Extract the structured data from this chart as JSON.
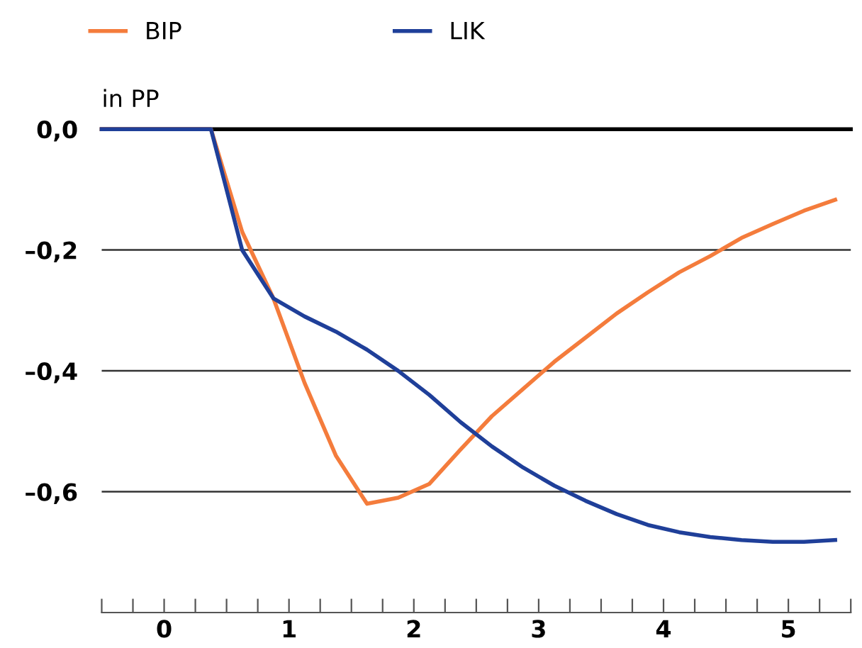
{
  "chart_data": {
    "type": "line",
    "ylabel": "in PP",
    "series": [
      {
        "name": "BIP",
        "color": "#f47c3c",
        "x": [
          -0.5,
          0.375,
          0.625,
          0.875,
          1.125,
          1.375,
          1.625,
          1.875,
          2.125,
          2.375,
          2.625,
          2.875,
          3.125,
          3.375,
          3.625,
          3.875,
          4.125,
          4.375,
          4.625,
          4.875,
          5.125,
          5.375
        ],
        "values": [
          0,
          0,
          -0.17,
          -0.28,
          -0.42,
          -0.54,
          -0.62,
          -0.61,
          -0.587,
          -0.53,
          -0.475,
          -0.43,
          -0.385,
          -0.345,
          -0.305,
          -0.27,
          -0.237,
          -0.21,
          -0.18,
          -0.157,
          -0.135,
          -0.117
        ]
      },
      {
        "name": "LIK",
        "color": "#1f3f99",
        "x": [
          -0.5,
          0.375,
          0.625,
          0.875,
          1.125,
          1.375,
          1.625,
          1.875,
          2.125,
          2.375,
          2.625,
          2.875,
          3.125,
          3.375,
          3.625,
          3.875,
          4.125,
          4.375,
          4.625,
          4.875,
          5.125,
          5.375
        ],
        "values": [
          0,
          0,
          -0.2,
          -0.28,
          -0.31,
          -0.335,
          -0.365,
          -0.4,
          -0.44,
          -0.485,
          -0.525,
          -0.56,
          -0.59,
          -0.615,
          -0.637,
          -0.655,
          -0.667,
          -0.675,
          -0.68,
          -0.683,
          -0.683,
          -0.68
        ]
      }
    ],
    "xlim": [
      -0.5,
      5.5
    ],
    "xticks": [
      {
        "value": -0.5,
        "label": null
      },
      {
        "value": -0.25,
        "label": null
      },
      0,
      {
        "value": 0.25,
        "label": null
      },
      {
        "value": 0.5,
        "label": null
      },
      {
        "value": 0.75,
        "label": null
      },
      1,
      {
        "value": 1.25,
        "label": null
      },
      {
        "value": 1.5,
        "label": null
      },
      {
        "value": 1.75,
        "label": null
      },
      2,
      {
        "value": 2.25,
        "label": null
      },
      {
        "value": 2.5,
        "label": null
      },
      {
        "value": 2.75,
        "label": null
      },
      3,
      {
        "value": 3.25,
        "label": null
      },
      {
        "value": 3.5,
        "label": null
      },
      {
        "value": 3.75,
        "label": null
      },
      4,
      {
        "value": 4.25,
        "label": null
      },
      {
        "value": 4.5,
        "label": null
      },
      {
        "value": 4.75,
        "label": null
      },
      5,
      {
        "value": 5.25,
        "label": null
      },
      {
        "value": 5.5,
        "label": null
      }
    ],
    "ylim": [
      -0.8,
      0
    ],
    "yticks": [
      {
        "value": 0,
        "label": "0,0"
      },
      {
        "value": -0.2,
        "label": "–0,2"
      },
      {
        "value": -0.4,
        "label": "–0,4"
      },
      {
        "value": -0.6,
        "label": "–0,6"
      }
    ],
    "ref_lines": [
      {
        "axis": "y",
        "value": 0,
        "color": "#000000"
      }
    ],
    "grid": "y",
    "legend": "top",
    "line_style": "solid"
  }
}
